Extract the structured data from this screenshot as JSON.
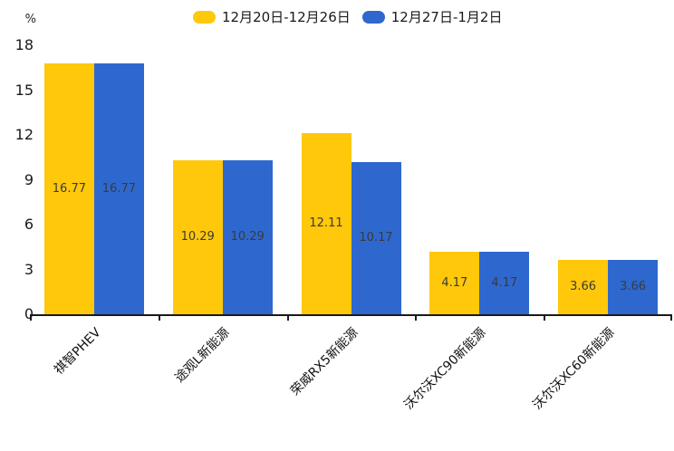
{
  "chart_data": {
    "type": "bar",
    "title": "",
    "xlabel": "",
    "ylabel": "%",
    "ylim": [
      0,
      18
    ],
    "yticks": [
      0,
      3,
      6,
      9,
      12,
      15,
      18
    ],
    "grid": false,
    "legend_position": "top-center",
    "value_labels": "inside-middle",
    "value_label_color": "#3a3a3a",
    "axis_color": "#1a1a1a",
    "categories": [
      "祺智PHEV",
      "途观L新能源",
      "荣威RX5新能源",
      "沃尔沃XC90新能源",
      "沃尔沃XC60新能源"
    ],
    "series": [
      {
        "name": "12月20日-12月26日",
        "color": "#FFC80A",
        "values": [
          16.77,
          10.29,
          12.11,
          4.17,
          3.66
        ]
      },
      {
        "name": "12月27日-1月2日",
        "color": "#2E68CE",
        "values": [
          16.77,
          10.29,
          10.17,
          4.17,
          3.66
        ]
      }
    ]
  }
}
